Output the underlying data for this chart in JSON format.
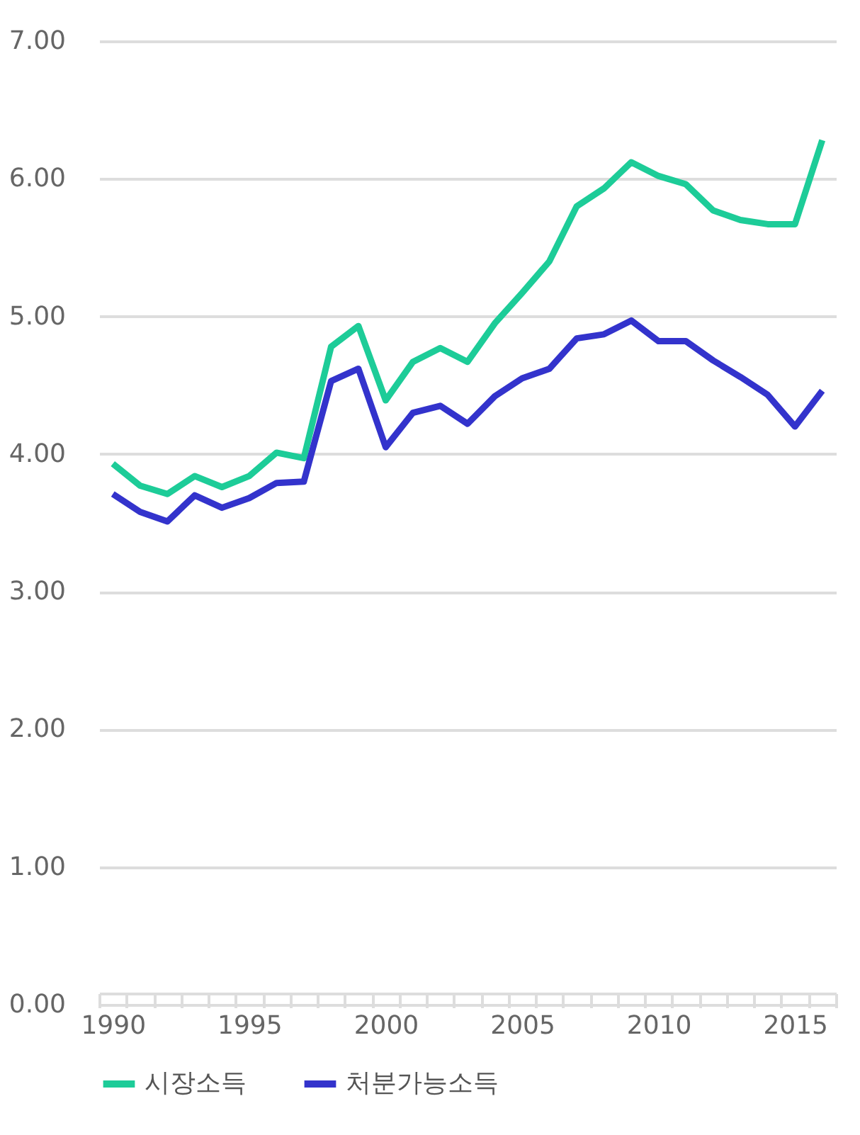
{
  "chart_data": {
    "type": "line",
    "categories": [
      "1990",
      null,
      null,
      null,
      null,
      "1995",
      null,
      null,
      null,
      null,
      "2000",
      null,
      null,
      null,
      null,
      "2005",
      null,
      null,
      null,
      null,
      "2010",
      null,
      null,
      null,
      null,
      "2015",
      null
    ],
    "series": [
      {
        "name": "시장소득",
        "color": "#1dcc98",
        "values": [
          3.93,
          3.77,
          3.71,
          3.84,
          3.76,
          3.84,
          4.01,
          3.97,
          4.78,
          4.93,
          4.39,
          4.67,
          4.77,
          4.67,
          4.95,
          5.17,
          5.4,
          5.8,
          5.93,
          6.12,
          6.02,
          5.96,
          5.77,
          5.7,
          5.67,
          5.67,
          6.28
        ]
      },
      {
        "name": "처분가능소득",
        "color": "#3333cc",
        "values": [
          3.71,
          3.58,
          3.51,
          3.7,
          3.61,
          3.68,
          3.79,
          3.8,
          4.53,
          4.62,
          4.05,
          4.3,
          4.35,
          4.22,
          4.42,
          4.55,
          4.62,
          4.84,
          4.87,
          4.97,
          4.82,
          4.82,
          4.68,
          4.56,
          4.43,
          4.2,
          4.46
        ]
      }
    ],
    "ylim": [
      0,
      7
    ],
    "yticks": [
      {
        "value": 0,
        "label": "0.00"
      },
      {
        "value": 1,
        "label": "1.00"
      },
      {
        "value": 2,
        "label": "2.00"
      },
      {
        "value": 3,
        "label": "3.00"
      },
      {
        "value": 4,
        "label": "4.00"
      },
      {
        "value": 5,
        "label": "5.00"
      },
      {
        "value": 6,
        "label": "6.00"
      },
      {
        "value": 7,
        "label": "7.00"
      }
    ],
    "grid": "y",
    "legend": "bottom",
    "marker": "none",
    "line_style": "solid"
  }
}
